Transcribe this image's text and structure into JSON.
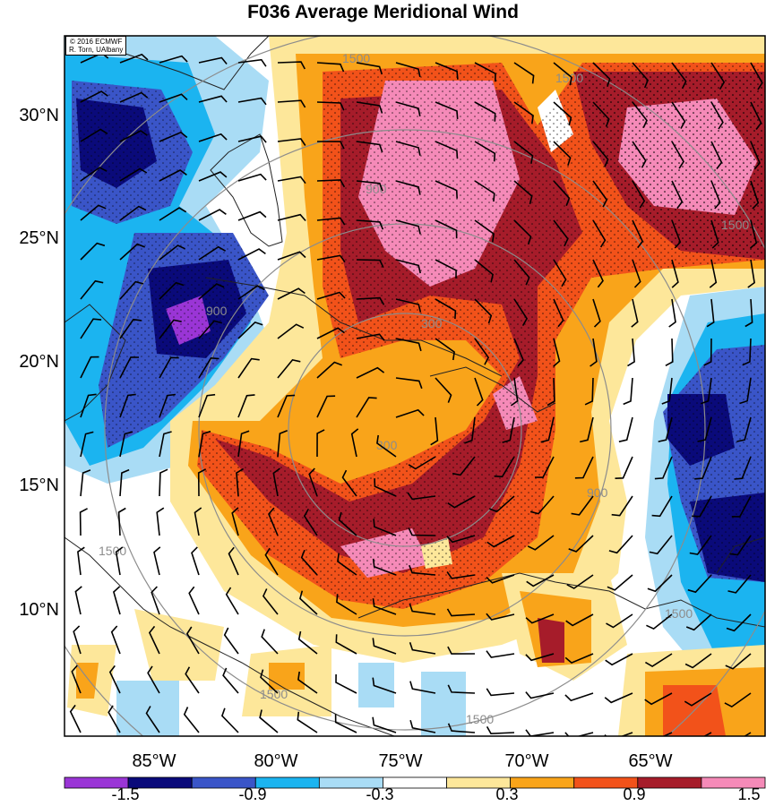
{
  "title": "F036 Average Meridional Wind",
  "credit": {
    "line1": "© 2016 ECMWF",
    "line2": "R. Torn, UAlbany"
  },
  "lat_labels": [
    "30°N",
    "25°N",
    "20°N",
    "15°N",
    "10°N"
  ],
  "lon_labels": [
    "85°W",
    "80°W",
    "75°W",
    "70°W",
    "65°W"
  ],
  "range_ring_labels": [
    "300",
    "300",
    "900",
    "900",
    "900",
    "1500",
    "1500",
    "1500",
    "1500",
    "1500",
    "1500",
    "1500"
  ],
  "colorbar": {
    "labels": [
      "-1.5",
      "-0.9",
      "-0.3",
      "0.3",
      "0.9",
      "1.5"
    ],
    "colors": [
      "#9a35d6",
      "#0a0a7a",
      "#3a55c8",
      "#1bb4f0",
      "#a9dcf5",
      "#ffffff",
      "#fde79a",
      "#f9a41a",
      "#f2521a",
      "#a61c2a",
      "#f58ab8"
    ]
  },
  "colors": {
    "coast": "#222222",
    "ring": "#8c8c8c",
    "stipple": "#000000"
  }
}
